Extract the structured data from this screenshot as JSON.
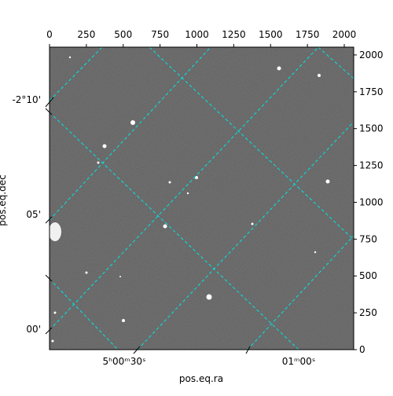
{
  "chart_data": {
    "type": "image",
    "xlabel": "pos.eq.ra",
    "ylabel": "pos.eq.dec",
    "xlim": [
      0,
      2064
    ],
    "ylim": [
      0,
      2053
    ],
    "xticks": [
      0,
      250,
      500,
      750,
      1000,
      1250,
      1500,
      1750,
      2000
    ],
    "yticks": [
      0,
      250,
      500,
      750,
      1000,
      1250,
      1500,
      1750,
      2000
    ],
    "ra_ticks": [
      "5ʰ00ᵐ30ˢ",
      "01ᵐ00ˢ"
    ],
    "dec_ticks": [
      "-2°10'",
      "05'",
      "00'"
    ]
  }
}
